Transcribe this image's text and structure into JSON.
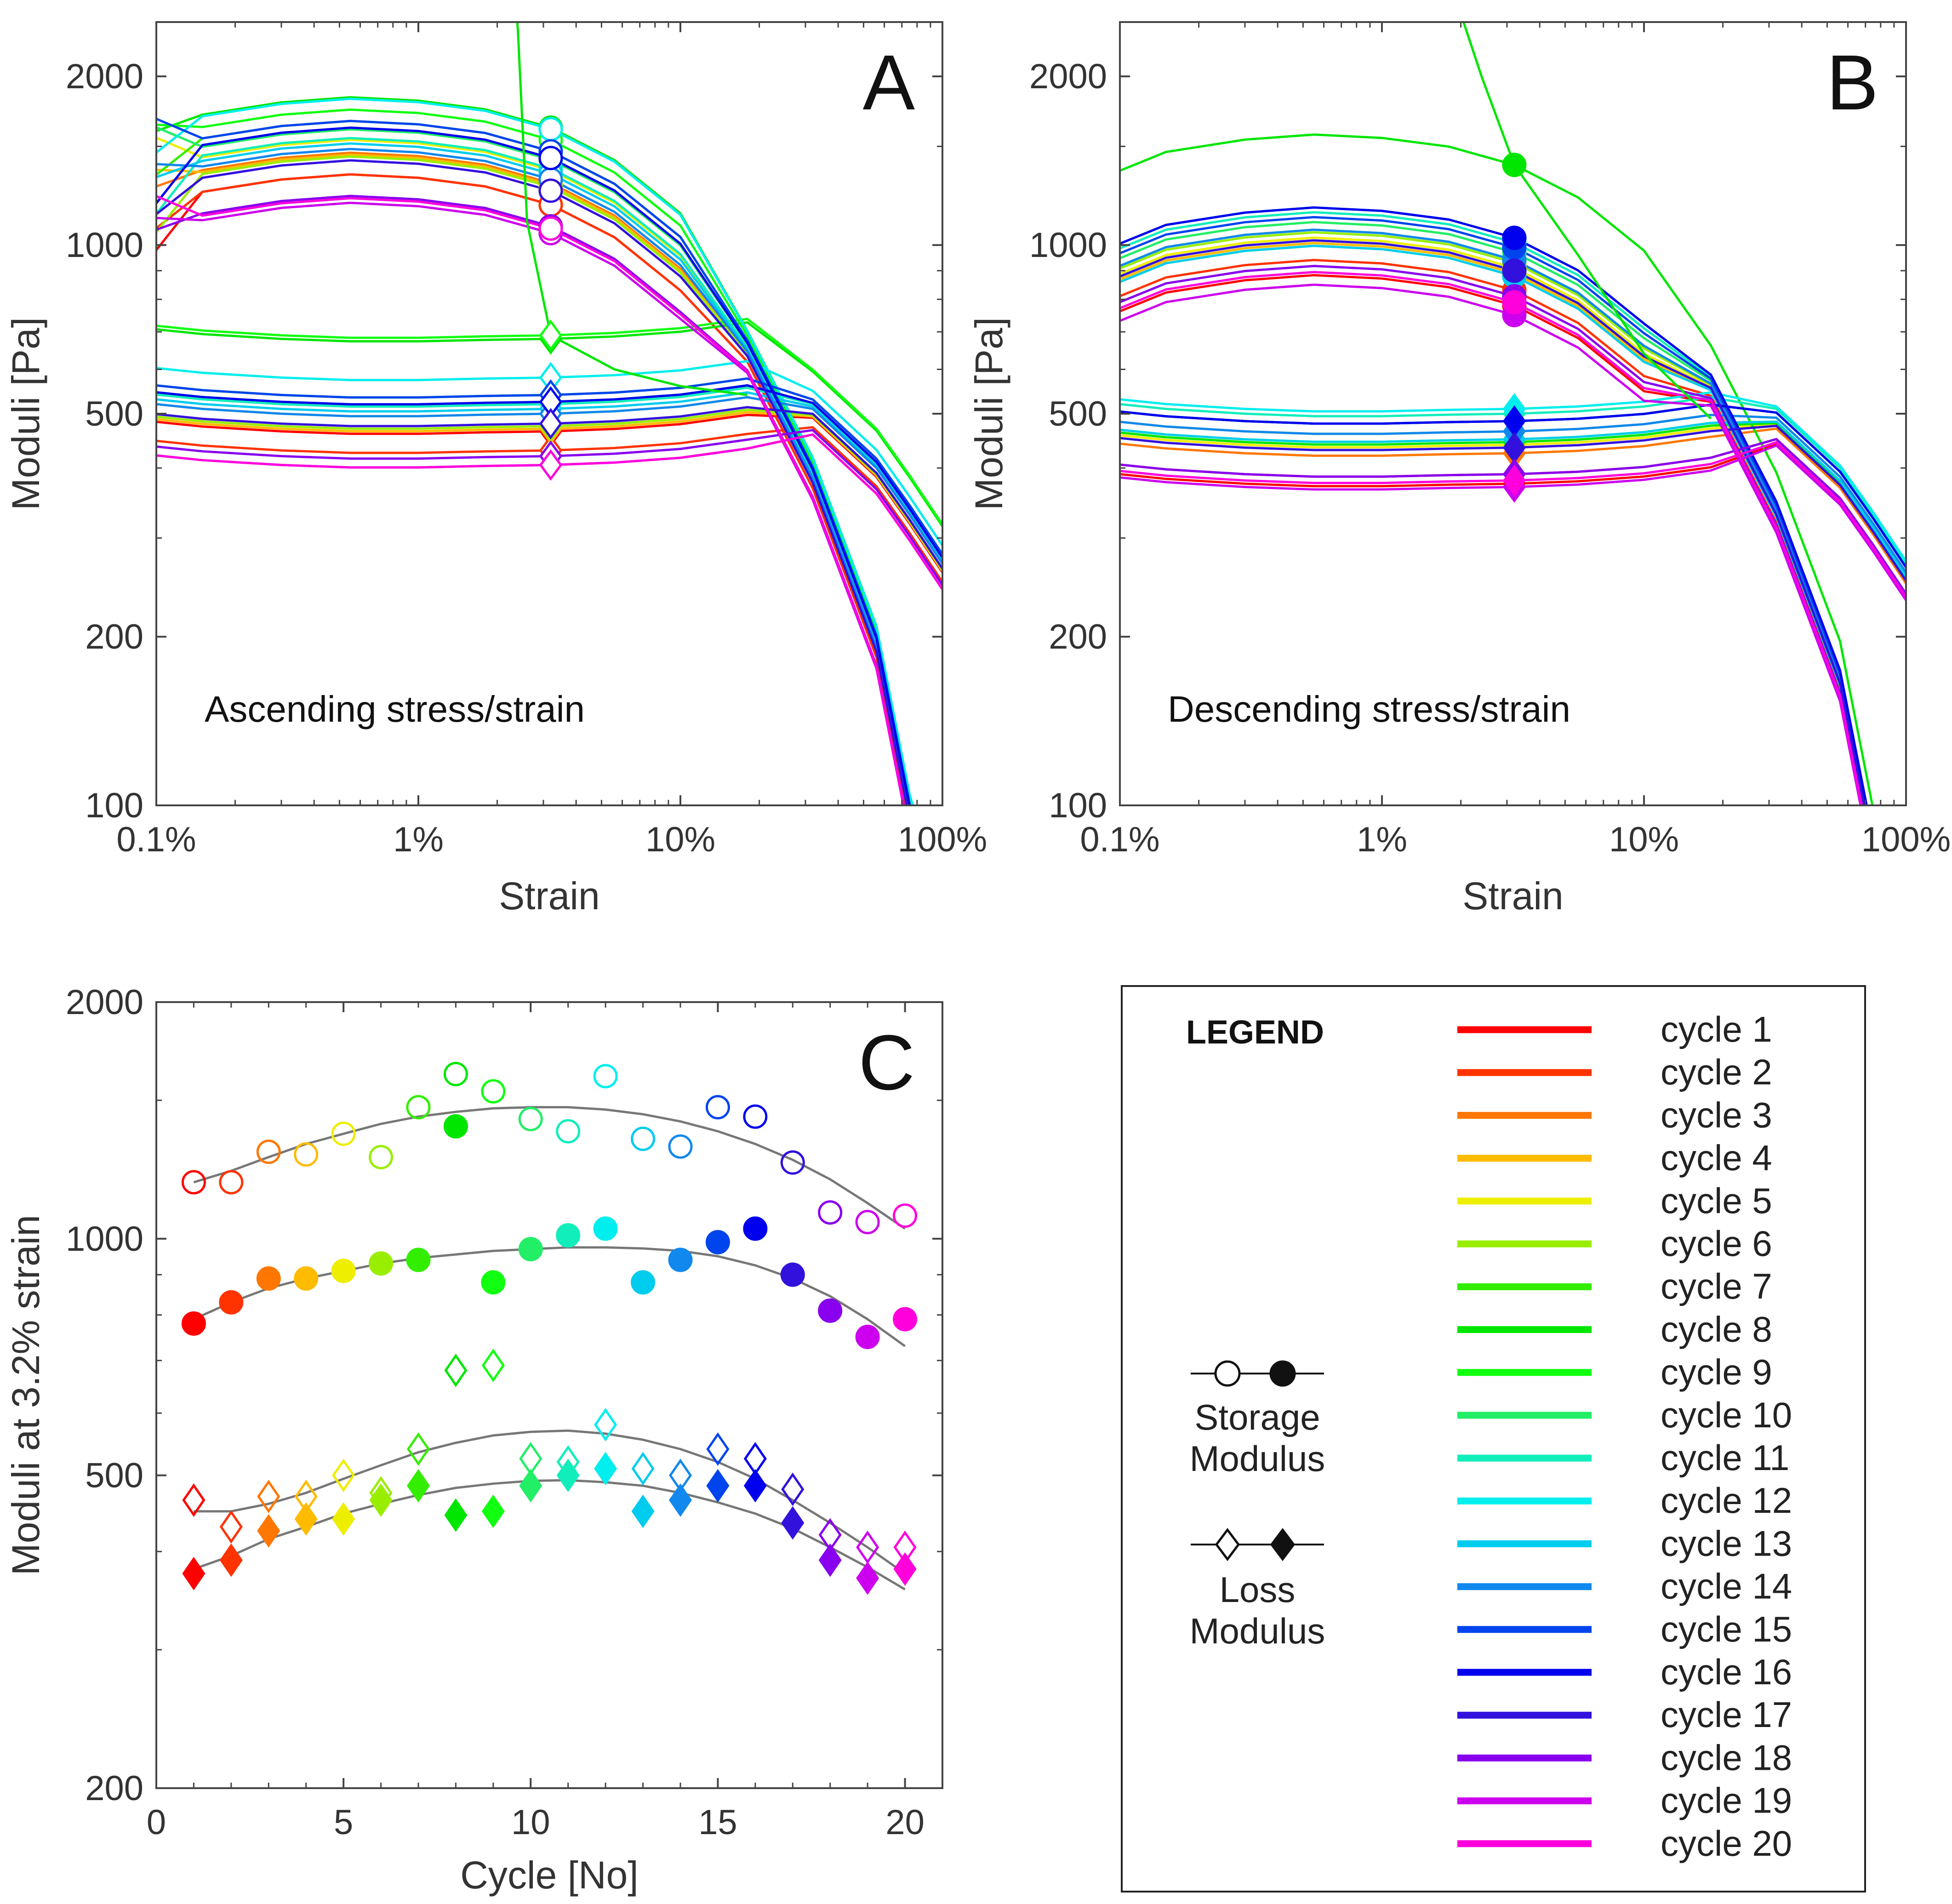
{
  "colors": [
    "#ff0000",
    "#ff3300",
    "#ff7700",
    "#ffbb00",
    "#eeee00",
    "#99ee00",
    "#33ee00",
    "#00e600",
    "#11ff11",
    "#22ee66",
    "#11eebb",
    "#00eeee",
    "#00ccee",
    "#1188ee",
    "#0044ee",
    "#0000ee",
    "#3311dd",
    "#8800ee",
    "#cc00ee",
    "#ff00dd"
  ],
  "chart_data": [
    {
      "id": "A",
      "type": "line",
      "panel_letter": "A",
      "annotation": "Ascending stress/strain",
      "xlabel": "Strain",
      "ylabel": "Moduli [Pa]",
      "xscale": "log",
      "yscale": "log",
      "xlim": [
        0.001,
        1
      ],
      "ylim": [
        100,
        2500
      ],
      "xticks": [
        {
          "v": 0.001,
          "label": "0.1%"
        },
        {
          "v": 0.01,
          "label": "1%"
        },
        {
          "v": 0.1,
          "label": "10%"
        },
        {
          "v": 1,
          "label": "100%"
        }
      ],
      "yticks": [
        {
          "v": 100,
          "label": "100"
        },
        {
          "v": 200,
          "label": "200"
        },
        {
          "v": 500,
          "label": "500"
        },
        {
          "v": 1000,
          "label": "1000"
        },
        {
          "v": 2000,
          "label": "2000"
        }
      ],
      "x": [
        0.001,
        0.0015,
        0.003,
        0.0055,
        0.01,
        0.018,
        0.032,
        0.056,
        0.1,
        0.18,
        0.32,
        0.56,
        0.75,
        1.0
      ],
      "marker_x": 0.032
    },
    {
      "id": "B",
      "type": "line",
      "panel_letter": "B",
      "annotation": "Descending stress/strain",
      "xlabel": "Strain",
      "ylabel": "Moduli [Pa]",
      "xscale": "log",
      "yscale": "log",
      "xlim": [
        0.001,
        1
      ],
      "ylim": [
        100,
        2500
      ],
      "xticks": [
        {
          "v": 0.001,
          "label": "0.1%"
        },
        {
          "v": 0.01,
          "label": "1%"
        },
        {
          "v": 0.1,
          "label": "10%"
        },
        {
          "v": 1,
          "label": "100%"
        }
      ],
      "yticks": [
        {
          "v": 100,
          "label": "100"
        },
        {
          "v": 200,
          "label": "200"
        },
        {
          "v": 500,
          "label": "500"
        },
        {
          "v": 1000,
          "label": "1000"
        },
        {
          "v": 2000,
          "label": "2000"
        }
      ],
      "x": [
        0.001,
        0.0015,
        0.003,
        0.0055,
        0.01,
        0.018,
        0.032,
        0.056,
        0.1,
        0.18,
        0.32,
        0.56,
        0.75,
        1.0
      ],
      "marker_x": 0.032
    },
    {
      "id": "C",
      "type": "scatter",
      "panel_letter": "C",
      "xlabel": "Cycle [No]",
      "ylabel": "Moduli at 3.2% strain",
      "xscale": "linear",
      "yscale": "log",
      "xlim": [
        0,
        21
      ],
      "ylim": [
        200,
        2000
      ],
      "xticks": [
        {
          "v": 0,
          "label": "0"
        },
        {
          "v": 5,
          "label": "5"
        },
        {
          "v": 10,
          "label": "10"
        },
        {
          "v": 15,
          "label": "15"
        },
        {
          "v": 20,
          "label": "20"
        }
      ],
      "yticks": [
        {
          "v": 200,
          "label": "200"
        },
        {
          "v": 500,
          "label": "500"
        },
        {
          "v": 1000,
          "label": "1000"
        },
        {
          "v": 2000,
          "label": "2000"
        }
      ],
      "cycles": [
        1,
        2,
        3,
        4,
        5,
        6,
        7,
        8,
        9,
        10,
        11,
        12,
        13,
        14,
        15,
        16,
        17,
        18,
        19,
        20
      ],
      "series": [
        {
          "name": "Storage Modulus (ascending)",
          "marker": "open-circle",
          "values": [
            1180,
            1180,
            1290,
            1280,
            1360,
            1270,
            1470,
            1620,
            1540,
            1420,
            1370,
            1610,
            1340,
            1310,
            1470,
            1430,
            1250,
            1080,
            1050,
            1070
          ]
        },
        {
          "name": "Storage Modulus (descending)",
          "marker": "filled-circle",
          "values": [
            780,
            830,
            890,
            890,
            910,
            930,
            940,
            1390,
            880,
            970,
            1010,
            1030,
            880,
            940,
            990,
            1030,
            900,
            810,
            750,
            790
          ]
        },
        {
          "name": "Loss Modulus (ascending)",
          "marker": "open-diamond",
          "values": [
            465,
            430,
            470,
            470,
            500,
            475,
            540,
            680,
            690,
            525,
            520,
            580,
            510,
            500,
            540,
            525,
            480,
            420,
            405,
            405
          ]
        },
        {
          "name": "Loss Modulus (descending)",
          "marker": "filled-diamond",
          "values": [
            375,
            390,
            425,
            440,
            440,
            465,
            485,
            445,
            450,
            485,
            500,
            510,
            450,
            465,
            485,
            485,
            435,
            390,
            370,
            380
          ]
        }
      ],
      "trend_lines": [
        {
          "name": "storage ascending fit",
          "values": [
            1180,
            1220,
            1270,
            1320,
            1360,
            1400,
            1430,
            1450,
            1465,
            1470,
            1470,
            1460,
            1440,
            1410,
            1370,
            1320,
            1260,
            1190,
            1110,
            1030
          ]
        },
        {
          "name": "storage descending fit",
          "values": [
            790,
            830,
            865,
            890,
            910,
            930,
            945,
            955,
            965,
            970,
            975,
            975,
            972,
            965,
            950,
            925,
            890,
            845,
            790,
            730
          ]
        },
        {
          "name": "loss ascending fit",
          "values": [
            450,
            450,
            460,
            475,
            495,
            515,
            535,
            550,
            562,
            568,
            570,
            565,
            555,
            540,
            520,
            495,
            465,
            435,
            405,
            375
          ]
        },
        {
          "name": "loss descending fit",
          "values": [
            380,
            395,
            415,
            430,
            447,
            460,
            472,
            482,
            488,
            492,
            493,
            490,
            485,
            475,
            462,
            447,
            428,
            405,
            382,
            358
          ]
        }
      ]
    }
  ],
  "legend": {
    "title": "LEGEND",
    "storage_label_line1": "Storage",
    "storage_label_line2": "Modulus",
    "loss_label_line1": "Loss",
    "loss_label_line2": "Modulus",
    "items": [
      "cycle 1",
      "cycle 2",
      "cycle 3",
      "cycle 4",
      "cycle 5",
      "cycle 6",
      "cycle 7",
      "cycle 8",
      "cycle 9",
      "cycle 10",
      "cycle 11",
      "cycle 12",
      "cycle 13",
      "cycle 14",
      "cycle 15",
      "cycle 16",
      "cycle 17",
      "cycle 18",
      "cycle 19",
      "cycle 20"
    ]
  }
}
